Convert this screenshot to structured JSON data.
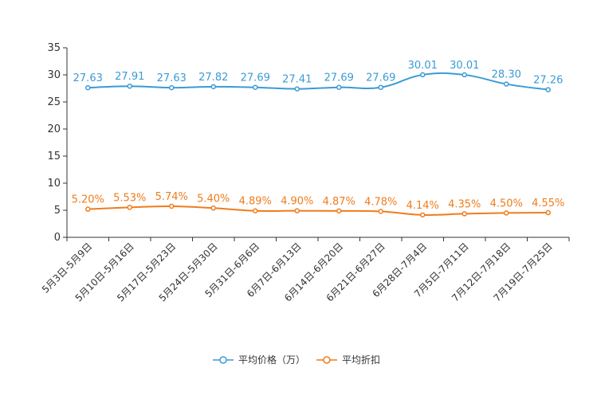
{
  "chart_data": {
    "type": "line",
    "categories": [
      "5月3日-5月9日",
      "5月10日-5月16日",
      "5月17日-5月23日",
      "5月24日-5月30日",
      "5月31日-6月6日",
      "6月7日-6月13日",
      "6月14日-6月20日",
      "6月21日-6月27日",
      "6月28日-7月4日",
      "7月5日-7月11日",
      "7月12日-7月18日",
      "7月19日-7月25日"
    ],
    "series": [
      {
        "name": "平均价格（万）",
        "color": "#3a9bd5",
        "values": [
          27.63,
          27.91,
          27.63,
          27.82,
          27.69,
          27.41,
          27.69,
          27.69,
          30.01,
          30.01,
          28.3,
          27.26
        ],
        "labels": [
          "27.63",
          "27.91",
          "27.63",
          "27.82",
          "27.69",
          "27.41",
          "27.69",
          "27.69",
          "30.01",
          "30.01",
          "28.30",
          "27.26"
        ]
      },
      {
        "name": "平均折扣",
        "color": "#f07c1c",
        "values": [
          5.2,
          5.53,
          5.74,
          5.4,
          4.89,
          4.9,
          4.87,
          4.78,
          4.14,
          4.35,
          4.5,
          4.55
        ],
        "labels": [
          "5.20%",
          "5.53%",
          "5.74%",
          "5.40%",
          "4.89%",
          "4.90%",
          "4.87%",
          "4.78%",
          "4.14%",
          "4.35%",
          "4.50%",
          "4.55%"
        ]
      }
    ],
    "yticks": [
      "0",
      "5",
      "10",
      "15",
      "20",
      "25",
      "30",
      "35"
    ],
    "ylim": [
      0,
      35
    ],
    "title": "",
    "xlabel": "",
    "ylabel": "",
    "legend_position": "bottom"
  }
}
